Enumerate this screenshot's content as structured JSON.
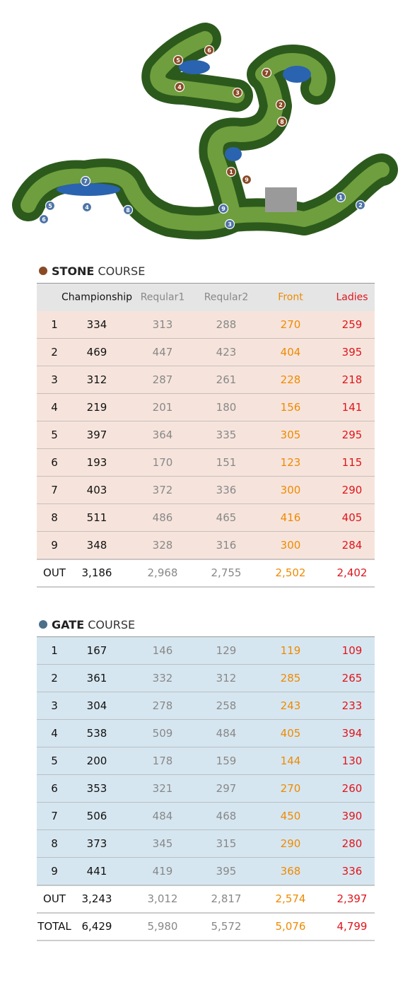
{
  "map": {
    "stone_markers": [
      "1",
      "2",
      "3",
      "4",
      "5",
      "6",
      "7",
      "8",
      "9"
    ],
    "gate_markers": [
      "1",
      "2",
      "3",
      "4",
      "5",
      "6",
      "7",
      "8",
      "9"
    ]
  },
  "stone": {
    "title_bold": "STONE",
    "title_rest": "COURSE",
    "header": [
      "Championship",
      "Reqular1",
      "Reqular2",
      "Front",
      "Ladies"
    ],
    "rows": [
      [
        "1",
        "334",
        "313",
        "288",
        "270",
        "259"
      ],
      [
        "2",
        "469",
        "447",
        "423",
        "404",
        "395"
      ],
      [
        "3",
        "312",
        "287",
        "261",
        "228",
        "218"
      ],
      [
        "4",
        "219",
        "201",
        "180",
        "156",
        "141"
      ],
      [
        "5",
        "397",
        "364",
        "335",
        "305",
        "295"
      ],
      [
        "6",
        "193",
        "170",
        "151",
        "123",
        "115"
      ],
      [
        "7",
        "403",
        "372",
        "336",
        "300",
        "290"
      ],
      [
        "8",
        "511",
        "486",
        "465",
        "416",
        "405"
      ],
      [
        "9",
        "348",
        "328",
        "316",
        "300",
        "284"
      ]
    ],
    "summary": [
      [
        "OUT",
        "3,186",
        "2,968",
        "2,755",
        "2,502",
        "2,402"
      ]
    ]
  },
  "gate": {
    "title_bold": "GATE",
    "title_rest": "COURSE",
    "rows": [
      [
        "1",
        "167",
        "146",
        "129",
        "119",
        "109"
      ],
      [
        "2",
        "361",
        "332",
        "312",
        "285",
        "265"
      ],
      [
        "3",
        "304",
        "278",
        "258",
        "243",
        "233"
      ],
      [
        "4",
        "538",
        "509",
        "484",
        "405",
        "394"
      ],
      [
        "5",
        "200",
        "178",
        "159",
        "144",
        "130"
      ],
      [
        "6",
        "353",
        "321",
        "297",
        "270",
        "260"
      ],
      [
        "7",
        "506",
        "484",
        "468",
        "450",
        "390"
      ],
      [
        "8",
        "373",
        "345",
        "315",
        "290",
        "280"
      ],
      [
        "9",
        "441",
        "419",
        "395",
        "368",
        "336"
      ]
    ],
    "summary": [
      [
        "OUT",
        "3,243",
        "3,012",
        "2,817",
        "2,574",
        "2,397"
      ],
      [
        "TOTAL",
        "6,429",
        "5,980",
        "5,572",
        "5,076",
        "4,799"
      ]
    ]
  }
}
